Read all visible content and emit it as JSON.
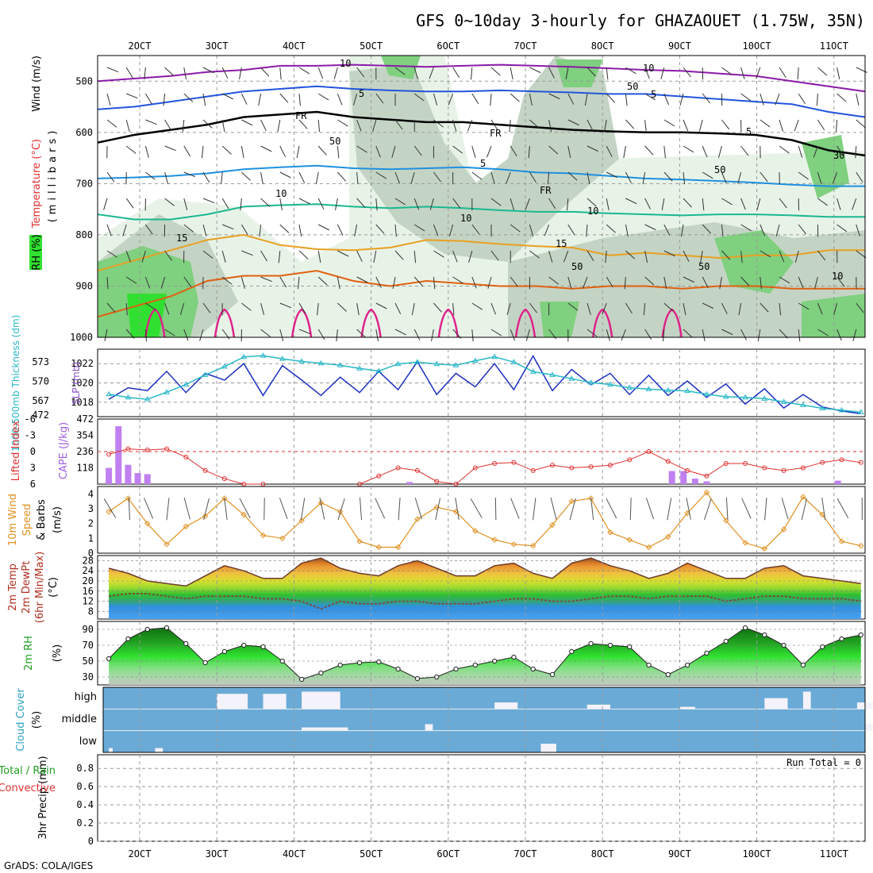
{
  "title": "GFS 0~10day 3-hourly for GHAZAOUET (1.75W, 35N)",
  "footer": "GrADS: COLA/IGES",
  "run_total_label": "Run Total = 0",
  "x_ticks": [
    "2OCT",
    "3OCT",
    "4OCT",
    "5OCT",
    "6OCT",
    "7OCT",
    "8OCT",
    "9OCT",
    "10OCT",
    "11OCT"
  ],
  "colors": {
    "rh_dark": "#2f9e2f",
    "rh_mid": "#7fd07f",
    "rh_light": "#c9e8c9",
    "gray_band": "#c0c8c0",
    "purple": "#8c1aa8",
    "blue": "#2255dd",
    "skyblue": "#1e90e0",
    "teal": "#1ab890",
    "orange": "#e8a020",
    "dk_orange": "#e06010",
    "magenta": "#e0208a",
    "slp": "#1a2fc0",
    "thick": "#29b8c8",
    "cape": "#c080f0",
    "li": "#e03030",
    "wind": "#e09020",
    "cloud": "#6aaad6"
  },
  "chart_data": [
    {
      "type": "heatmap",
      "name": "upper_air",
      "ylabel_parts": [
        "Wind (m/s)",
        "Temperature (°C)",
        "RH (%)",
        "(millibars)"
      ],
      "y_ticks": [
        500,
        600,
        700,
        800,
        900,
        1000
      ],
      "ylim": [
        1000,
        450
      ],
      "contour_labels": [
        "10",
        "5",
        "FR",
        "5",
        "10",
        "15",
        "10",
        "5",
        "FR",
        "5",
        "10",
        "15",
        "10",
        "FR",
        "50",
        "50",
        "50",
        "50",
        "50",
        "10",
        "30"
      ],
      "isotherms": [
        {
          "label": "-10",
          "color": "purple",
          "p": [
            500,
            495,
            490,
            482,
            478,
            470,
            470,
            468,
            470,
            472,
            470,
            468,
            470,
            472,
            475,
            478,
            480,
            485,
            490,
            500,
            510,
            520
          ]
        },
        {
          "label": "-5",
          "color": "blue",
          "p": [
            555,
            550,
            540,
            530,
            520,
            515,
            510,
            515,
            518,
            520,
            520,
            518,
            520,
            522,
            525,
            525,
            530,
            535,
            540,
            545,
            560,
            570
          ]
        },
        {
          "label": "FR",
          "color": "black",
          "p": [
            620,
            605,
            595,
            585,
            570,
            565,
            560,
            570,
            575,
            580,
            580,
            585,
            590,
            595,
            598,
            600,
            600,
            602,
            605,
            615,
            635,
            645
          ]
        },
        {
          "label": "5",
          "color": "skyblue",
          "p": [
            690,
            688,
            685,
            680,
            672,
            668,
            665,
            670,
            672,
            670,
            668,
            672,
            678,
            680,
            685,
            690,
            692,
            695,
            698,
            702,
            705,
            705
          ]
        },
        {
          "label": "10",
          "color": "teal",
          "p": [
            760,
            770,
            770,
            760,
            745,
            742,
            740,
            745,
            748,
            745,
            748,
            752,
            755,
            755,
            758,
            760,
            762,
            760,
            760,
            762,
            765,
            765
          ]
        },
        {
          "label": "15",
          "color": "orange",
          "p": [
            870,
            850,
            830,
            810,
            800,
            820,
            828,
            830,
            825,
            810,
            812,
            818,
            822,
            825,
            840,
            835,
            840,
            845,
            840,
            840,
            830,
            830
          ]
        },
        {
          "label": "20",
          "color": "dk_orange",
          "p": [
            960,
            940,
            920,
            890,
            880,
            880,
            870,
            890,
            900,
            890,
            895,
            900,
            900,
            905,
            900,
            900,
            905,
            900,
            900,
            905,
            905,
            905
          ]
        }
      ]
    },
    {
      "type": "line",
      "name": "slp_thickness",
      "ylabel_left": "1000-500mb Thickness (dm)",
      "ylabel_right": "SLP (mb)",
      "left_ticks": [
        "573",
        "570",
        "567"
      ],
      "right_ticks": [
        "1022",
        "1020",
        "1018"
      ],
      "x": [
        0,
        0.25,
        0.5,
        0.75,
        1,
        1.25,
        1.5,
        1.75,
        2,
        2.25,
        2.5,
        2.75,
        3,
        3.25,
        3.5,
        3.75,
        4,
        4.25,
        4.5,
        4.75,
        5,
        5.25,
        5.5,
        5.75,
        6,
        6.25,
        6.5,
        6.75,
        7,
        7.25,
        7.5,
        7.75,
        8,
        8.25,
        8.5,
        8.75,
        9,
        9.25,
        9.5,
        9.75
      ],
      "series": [
        {
          "name": "SLP",
          "color": "slp",
          "values": [
            1018.3,
            1019.5,
            1019.2,
            1021.2,
            1019.0,
            1021.0,
            1020.3,
            1022.0,
            1018.7,
            1021.8,
            1020.3,
            1018.7,
            1020.6,
            1019.0,
            1021.2,
            1019.3,
            1022.2,
            1018.8,
            1021.0,
            1019.6,
            1022.0,
            1019.3,
            1022.8,
            1019.2,
            1021.4,
            1019.8,
            1021.0,
            1018.8,
            1020.8,
            1018.7,
            1020.2,
            1018.5,
            1019.9,
            1017.8,
            1019.4,
            1017.4,
            1018.8,
            1017.5,
            1017.1,
            1016.8
          ]
        },
        {
          "name": "Thickness",
          "color": "thick",
          "values": [
            568.0,
            567.5,
            567.2,
            568.3,
            569.5,
            571.0,
            572.3,
            573.8,
            574.0,
            573.5,
            573.1,
            572.8,
            572.5,
            572.0,
            571.6,
            572.7,
            573.0,
            572.7,
            572.5,
            573.2,
            573.8,
            573.0,
            571.5,
            571.0,
            570.4,
            569.8,
            569.5,
            569.0,
            568.8,
            568.6,
            568.5,
            568.0,
            567.6,
            567.5,
            567.3,
            566.8,
            566.3,
            565.8,
            565.5,
            565.2
          ]
        }
      ]
    },
    {
      "type": "bar",
      "name": "cape_li",
      "ylabel_left": "Lifted Index",
      "ylabel_right": "CAPE (J/kg)",
      "left_ticks": [
        "-6",
        "-3",
        "0",
        "3",
        "6"
      ],
      "right_ticks": [
        "472",
        "354",
        "236",
        "118"
      ],
      "x": [
        0,
        0.125,
        0.25,
        0.375,
        0.5,
        3.9,
        7.3,
        7.45,
        7.6,
        7.75,
        9.45
      ],
      "cape": [
        118,
        420,
        140,
        80,
        72,
        15,
        95,
        95,
        40,
        20,
        25
      ],
      "li_x": [
        0,
        0.25,
        0.5,
        0.75,
        1,
        1.25,
        1.5,
        1.75,
        2,
        3.25,
        3.5,
        3.75,
        4,
        4.25,
        4.5,
        4.75,
        5,
        5.25,
        5.5,
        5.75,
        6,
        6.25,
        6.5,
        6.75,
        7,
        7.25,
        7.5,
        7.75,
        8,
        8.25,
        8.5,
        8.75,
        9,
        9.25,
        9.5,
        9.75
      ],
      "li": [
        0.5,
        -0.5,
        -0.3,
        -0.5,
        1.0,
        3.5,
        5.0,
        6.0,
        7.0,
        7.0,
        4.5,
        3.0,
        3.5,
        5.5,
        6.5,
        3.0,
        2.2,
        2.0,
        3.5,
        2.5,
        3.0,
        2.8,
        2.5,
        1.5,
        0.0,
        1.8,
        3.5,
        4.5,
        2.2,
        2.2,
        3.0,
        3.5,
        3.0,
        2.0,
        1.5,
        2.0
      ]
    },
    {
      "type": "line",
      "name": "wind10m",
      "ylabel_parts": [
        "10m Wind",
        "Speed",
        "& Barbs",
        "(m/s)"
      ],
      "y_ticks": [
        0,
        1,
        2,
        3,
        4
      ],
      "ylim": [
        0,
        4.5
      ],
      "series": [
        {
          "name": "Wind speed",
          "color": "wind",
          "values": [
            2.8,
            3.7,
            2.0,
            0.6,
            1.8,
            2.5,
            3.7,
            2.6,
            1.2,
            1.0,
            2.2,
            3.4,
            2.8,
            0.8,
            0.4,
            0.4,
            2.3,
            3.1,
            2.8,
            1.5,
            0.9,
            0.6,
            0.5,
            1.9,
            3.5,
            3.7,
            1.4,
            0.9,
            0.4,
            1.1,
            2.7,
            4.1,
            2.2,
            0.7,
            0.3,
            1.6,
            3.8,
            2.6,
            0.8,
            0.5
          ]
        }
      ]
    },
    {
      "type": "area",
      "name": "temperature",
      "ylabel_parts": [
        "2m Temp",
        "2m DewPt",
        "(6hr Min/Max)",
        "(°C)"
      ],
      "y_ticks": [
        8,
        12,
        16,
        20,
        24,
        28
      ],
      "ylim": [
        5,
        30
      ],
      "series": [
        {
          "name": "Temp",
          "values": [
            25,
            23,
            20,
            19,
            18,
            22,
            26,
            24,
            21,
            21,
            27,
            29,
            25,
            23,
            22,
            26,
            28,
            25,
            22,
            22,
            26,
            27,
            23,
            21,
            27,
            29,
            26,
            24,
            21,
            23,
            27,
            24,
            21,
            21,
            25,
            26,
            22,
            21,
            20,
            19
          ]
        },
        {
          "name": "DewPt",
          "values": [
            14,
            15,
            15,
            14,
            13,
            14,
            14,
            14,
            13,
            13,
            12,
            9,
            12,
            11,
            11,
            12,
            12,
            11,
            11,
            11,
            12,
            13,
            13,
            12,
            12,
            13,
            14,
            14,
            13,
            14,
            14,
            14,
            12,
            13,
            14,
            14,
            13,
            13,
            13,
            12
          ]
        }
      ]
    },
    {
      "type": "area",
      "name": "rh2m",
      "ylabel": "2m RH (%)",
      "y_ticks": [
        30,
        50,
        70,
        90
      ],
      "ylim": [
        20,
        100
      ],
      "series": [
        {
          "name": "RH",
          "values": [
            53,
            78,
            90,
            92,
            72,
            48,
            62,
            70,
            68,
            50,
            27,
            35,
            45,
            48,
            49,
            40,
            28,
            30,
            40,
            45,
            50,
            55,
            40,
            33,
            62,
            72,
            70,
            68,
            45,
            33,
            45,
            60,
            75,
            92,
            83,
            70,
            45,
            68,
            78,
            83
          ]
        }
      ]
    },
    {
      "type": "heatmap",
      "name": "cloud",
      "ylabel": "Cloud Cover (%)",
      "levels": [
        "high",
        "middle",
        "low"
      ],
      "high_gaps": [
        [
          1.4,
          1.8,
          0.7
        ],
        [
          2.0,
          2.3,
          0.7
        ],
        [
          2.5,
          3.0,
          0.8
        ],
        [
          5.0,
          5.3,
          0.3
        ],
        [
          6.2,
          6.5,
          0.2
        ],
        [
          7.4,
          7.6,
          0.1
        ],
        [
          8.5,
          8.8,
          0.5
        ],
        [
          9.0,
          9.1,
          0.8
        ],
        [
          9.7,
          9.9,
          0.3
        ]
      ],
      "middle_gaps": [
        [
          2.5,
          3.1,
          0.15
        ],
        [
          4.1,
          4.2,
          0.3
        ],
        [
          9.8,
          9.9,
          0.3
        ]
      ],
      "low_gaps": [
        [
          0,
          0.05,
          0.2
        ],
        [
          0.6,
          0.7,
          0.2
        ],
        [
          5.6,
          5.8,
          0.4
        ]
      ]
    },
    {
      "type": "bar",
      "name": "precip",
      "ylabel_left_parts": [
        "Total / Rain",
        "Convective"
      ],
      "ylabel": "3hr Precip (mm)",
      "y_ticks": [
        "0",
        "0.2",
        "0.4",
        "0.6",
        "0.8"
      ],
      "ylim": [
        0,
        0.95
      ],
      "values": []
    }
  ]
}
